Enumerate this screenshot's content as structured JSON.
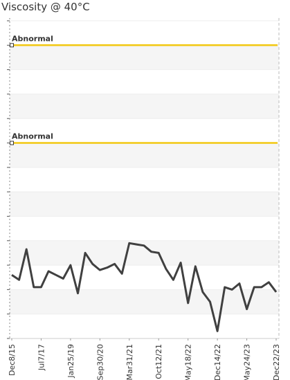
{
  "chart_data": {
    "type": "line",
    "title": "Viscosity @ 40°C",
    "categories": [
      "Dec8/15",
      null,
      null,
      null,
      "Jul7/17",
      null,
      null,
      null,
      "Jan25/19",
      null,
      null,
      null,
      "Sep30/20",
      null,
      null,
      null,
      "Mar31/21",
      null,
      null,
      null,
      "Oct12/21",
      null,
      null,
      null,
      "May18/22",
      null,
      null,
      null,
      "Dec14/22",
      null,
      null,
      null,
      "May24/23",
      null,
      null,
      null,
      "Dec22/23"
    ],
    "series": [
      {
        "color": "#404040",
        "values": [
          2.6,
          2.4,
          3.65,
          2.1,
          2.1,
          2.75,
          2.6,
          2.45,
          3.0,
          1.85,
          3.5,
          3.05,
          2.8,
          2.9,
          3.05,
          2.65,
          3.9,
          3.85,
          3.8,
          3.55,
          3.5,
          2.85,
          2.4,
          3.1,
          1.45,
          2.95,
          1.9,
          1.5,
          0.3,
          2.1,
          2.0,
          2.25,
          1.2,
          2.1,
          2.1,
          2.3,
          1.9
        ]
      }
    ],
    "thresholds": [
      {
        "label": "Abnormal",
        "value": 12,
        "color": "#f2c811"
      },
      {
        "label": "Abnormal",
        "value": 8,
        "color": "#f2c811"
      }
    ],
    "ylim": [
      0,
      13
    ],
    "yticks": [
      0,
      1,
      2,
      3,
      4,
      5,
      6,
      7,
      8,
      9,
      10,
      11,
      12,
      13
    ],
    "grid": true
  }
}
